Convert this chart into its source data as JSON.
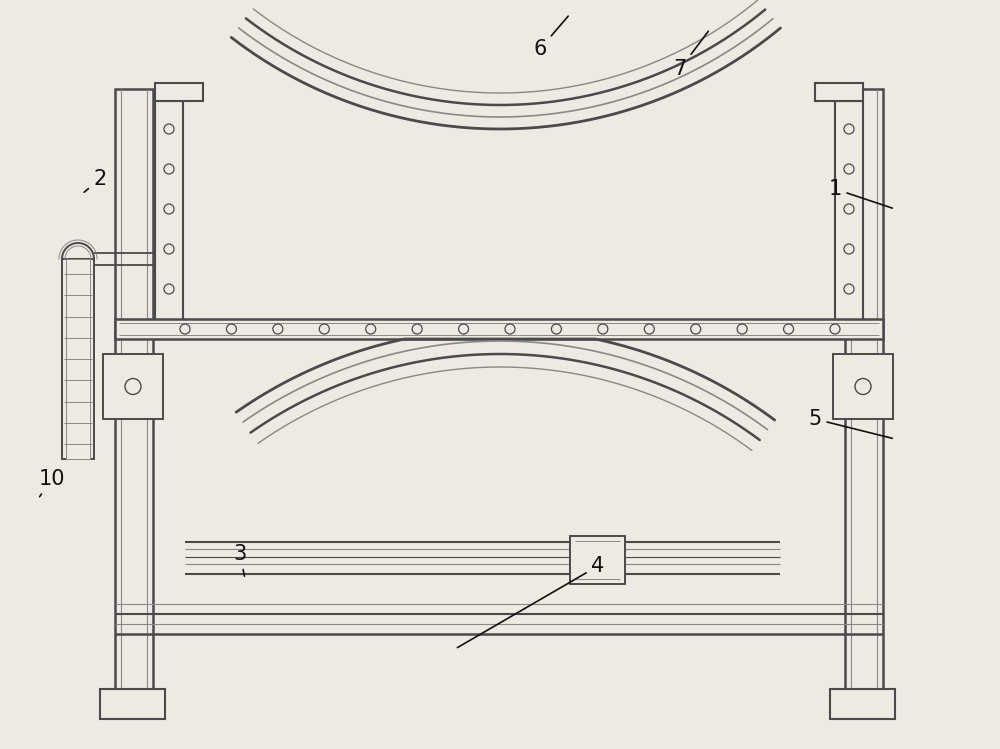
{
  "bg_color": "#ede9e3",
  "line_color": "#4a4a4a",
  "line_color_light": "#888888",
  "line_color_lighter": "#aaaaaa",
  "label_color": "#111111",
  "figsize": [
    10.0,
    7.49
  ],
  "dpi": 100,
  "white_fill": "#ede9e3"
}
